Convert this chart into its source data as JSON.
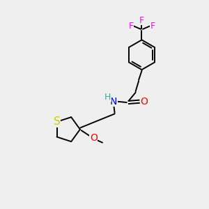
{
  "bg_color": "#efefef",
  "bond_color": "#000000",
  "atom_colors": {
    "F": "#ff00ff",
    "N": "#0000cd",
    "O": "#ff0000",
    "S": "#cccc00",
    "H": "#20b2aa",
    "C": "#000000"
  },
  "bond_lw": 1.4,
  "font_size": 10,
  "figsize": [
    3.0,
    3.0
  ],
  "dpi": 100
}
